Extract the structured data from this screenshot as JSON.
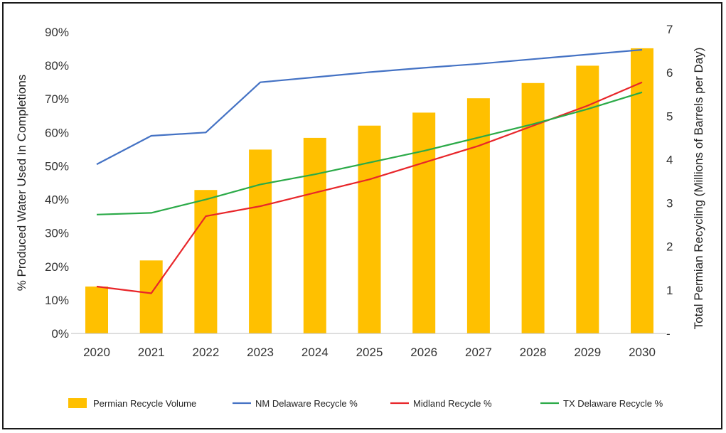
{
  "chart_data": {
    "type": "bar",
    "categories": [
      "2020",
      "2021",
      "2022",
      "2023",
      "2024",
      "2025",
      "2026",
      "2027",
      "2028",
      "2029",
      "2030"
    ],
    "ylabel_left": "% Produced Water Used In Completions",
    "ylabel_right": "Total Permian Recycling (Millions of Barrels per Day)",
    "ylim_left": [
      0,
      90
    ],
    "ylim_right": [
      0,
      7
    ],
    "left_ticks": [
      "0%",
      "10%",
      "20%",
      "30%",
      "40%",
      "50%",
      "60%",
      "70%",
      "80%",
      "90%"
    ],
    "right_ticks": [
      "-",
      "1",
      "2",
      "3",
      "4",
      "5",
      "6",
      "7"
    ],
    "grid": false,
    "legend_position": "bottom",
    "bar_series": {
      "name": "Permian Recycle Volume",
      "axis": "right",
      "color": "#FFC000",
      "values": [
        1.08,
        1.68,
        3.3,
        4.23,
        4.5,
        4.78,
        5.08,
        5.41,
        5.76,
        6.16,
        6.56
      ]
    },
    "line_series": [
      {
        "name": "NM Delaware Recycle %",
        "axis": "left",
        "color": "#4472C4",
        "values": [
          50.5,
          59,
          60,
          75,
          76.5,
          78,
          79.3,
          80.5,
          81.9,
          83.3,
          84.7
        ]
      },
      {
        "name": "Midland Recycle %",
        "axis": "left",
        "color": "#E8262A",
        "values": [
          14,
          12,
          35,
          38,
          42,
          46,
          51,
          56,
          62,
          68,
          75
        ]
      },
      {
        "name": "TX Delaware Recycle %",
        "axis": "left",
        "color": "#2BAA48",
        "values": [
          35.5,
          36,
          40,
          44.5,
          47.5,
          51,
          54.5,
          58.5,
          62.5,
          67,
          72
        ]
      }
    ]
  }
}
